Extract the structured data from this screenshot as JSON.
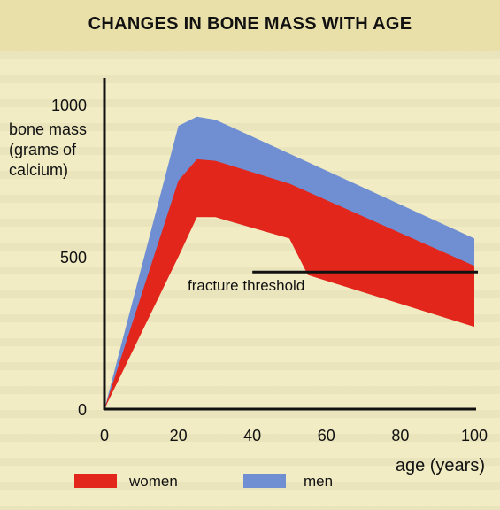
{
  "title": "CHANGES IN BONE MASS WITH AGE",
  "chart_data": {
    "type": "area",
    "ylabel": [
      "bone mass",
      "(grams of",
      "calcium)"
    ],
    "xlabel": "age (years)",
    "xlim": [
      0,
      100
    ],
    "ylim": [
      0,
      1000
    ],
    "x_ticks": [
      0,
      20,
      40,
      60,
      80,
      100
    ],
    "y_ticks": [
      0,
      500,
      1000
    ],
    "grid": false,
    "legend_position": "bottom",
    "series": [
      {
        "name": "men",
        "color": "#6f8fd2",
        "upper": [
          [
            0,
            0
          ],
          [
            20,
            930
          ],
          [
            25,
            960
          ],
          [
            30,
            950
          ],
          [
            100,
            560
          ]
        ],
        "lower": [
          [
            0,
            0
          ],
          [
            20,
            650
          ],
          [
            25,
            770
          ],
          [
            30,
            780
          ],
          [
            100,
            360
          ]
        ]
      },
      {
        "name": "women",
        "color": "#e3261c",
        "upper": [
          [
            0,
            0
          ],
          [
            20,
            750
          ],
          [
            25,
            820
          ],
          [
            30,
            815
          ],
          [
            50,
            740
          ],
          [
            100,
            470
          ]
        ],
        "lower": [
          [
            0,
            0
          ],
          [
            20,
            500
          ],
          [
            25,
            630
          ],
          [
            30,
            630
          ],
          [
            50,
            560
          ],
          [
            55,
            440
          ],
          [
            100,
            270
          ]
        ]
      }
    ],
    "threshold": {
      "label": "fracture threshold",
      "y": 450,
      "x_start": 40,
      "x_end": 100
    }
  }
}
